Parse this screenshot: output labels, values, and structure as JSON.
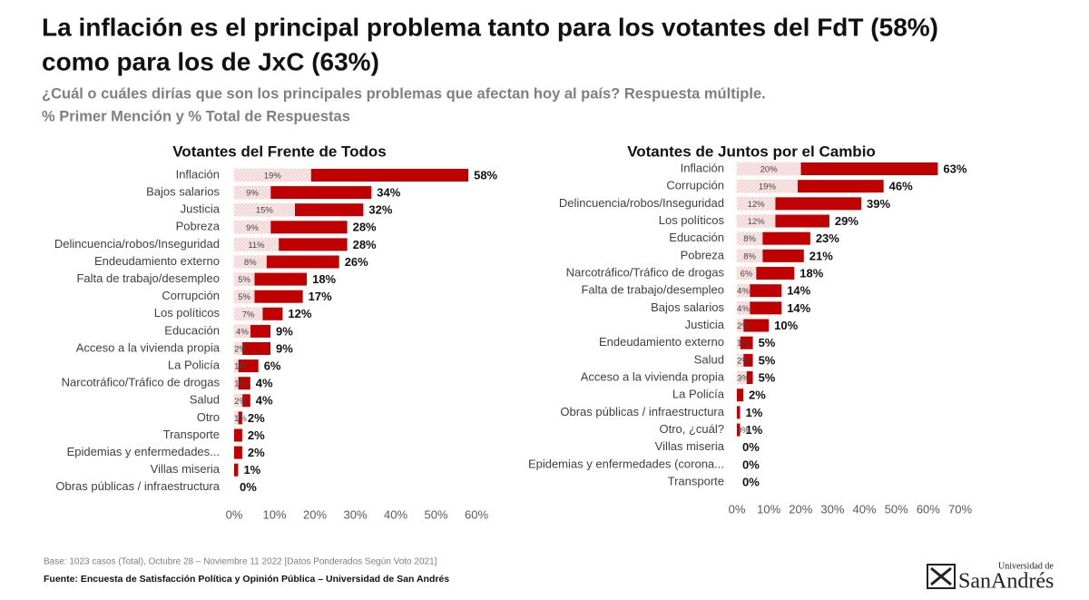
{
  "title": [
    "La inflación es el principal problema tanto para los votantes del FdT (58%)",
    "como para los de JxC (63%)"
  ],
  "subtitle": [
    "¿Cuál o cuáles dirías que son los principales problemas que afectan hoy al país? Respuesta múltiple.",
    "% Primer Mención y % Total de Respuestas"
  ],
  "note": "Base: 1023 casos (Total), Octubre 28 – Noviembre 11 2022 [Datos Ponderados Según Voto 2021]",
  "source": "Fuente: Encuesta de Satisfacción Política y Opinión Pública – Universidad de San Andrés",
  "logo": [
    "Universidad de",
    "SanAndrés"
  ],
  "chart_data": [
    {
      "type": "bar",
      "orientation": "horizontal",
      "title": "Votantes del Frente de Todos",
      "categories": [
        "Inflación",
        "Bajos salarios",
        "Justicia",
        "Pobreza",
        "Delincuencia/robos/Inseguridad",
        "Endeudamiento externo",
        "Falta de trabajo/desempleo",
        "Corrupción",
        "Los políticos",
        "Educación",
        "Acceso a la vivienda propia",
        "La Policía",
        "Narcotráfico/Tráfico de drogas",
        "Salud",
        "Otro",
        "Transporte",
        "Epidemias y enfermedades...",
        "Villas miseria",
        "Obras públicas / infraestructura"
      ],
      "series": [
        {
          "color": "#c00000",
          "values": [
            58,
            34,
            32,
            28,
            28,
            26,
            18,
            17,
            12,
            9,
            9,
            6,
            4,
            4,
            2,
            2,
            2,
            1,
            0
          ],
          "value_labels": [
            "58%",
            "34%",
            "32%",
            "28%",
            "28%",
            "26%",
            "18%",
            "17%",
            "12%",
            "9%",
            "9%",
            "6%",
            "4%",
            "4%",
            "2%",
            "2%",
            "2%",
            "1%",
            "0%"
          ]
        },
        {
          "color": "#f9dede",
          "values": [
            19,
            9,
            15,
            9,
            11,
            8,
            5,
            5,
            7,
            4,
            2,
            1,
            1,
            2,
            1,
            null,
            null,
            null,
            null
          ],
          "value_labels": [
            "19%",
            "9%",
            "15%",
            "9%",
            "11%",
            "8%",
            "5%",
            "5%",
            "7%",
            "4%",
            "2%",
            "1%",
            "1%",
            "2%",
            "1%",
            null,
            null,
            null,
            null
          ]
        }
      ],
      "xlim": [
        0,
        60
      ],
      "xticks": [
        {
          "value": 0,
          "label": "0%"
        },
        {
          "value": 10,
          "label": "10%"
        },
        {
          "value": 20,
          "label": "20%"
        },
        {
          "value": 30,
          "label": "30%"
        },
        {
          "value": 40,
          "label": "40%"
        },
        {
          "value": 50,
          "label": "50%"
        },
        {
          "value": 60,
          "label": "60%"
        }
      ]
    },
    {
      "type": "bar",
      "orientation": "horizontal",
      "title": "Votantes de Juntos por el Cambio",
      "categories": [
        "Inflación",
        "Corrupción",
        "Delincuencia/robos/Inseguridad",
        "Los políticos",
        "Educación",
        "Pobreza",
        "Narcotráfico/Tráfico de drogas",
        "Falta de trabajo/desempleo",
        "Bajos salarios",
        "Justicia",
        "Endeudamiento externo",
        "Salud",
        "Acceso a la vivienda propia",
        "La Policía",
        "Obras públicas / infraestructura",
        "Otro, ¿cuál?",
        "Villas miseria",
        "Epidemias y enfermedades (corona...",
        "Transporte"
      ],
      "series": [
        {
          "color": "#c00000",
          "values": [
            63,
            46,
            39,
            29,
            23,
            21,
            18,
            14,
            14,
            10,
            5,
            5,
            5,
            2,
            1,
            1,
            0,
            0,
            0
          ],
          "value_labels": [
            "63%",
            "46%",
            "39%",
            "29%",
            "23%",
            "21%",
            "18%",
            "14%",
            "14%",
            "10%",
            "5%",
            "5%",
            "5%",
            "2%",
            "1%",
            "1%",
            "0%",
            "0%",
            "0%"
          ]
        },
        {
          "color": "#f9dede",
          "values": [
            20,
            19,
            12,
            12,
            8,
            8,
            6,
            4,
            4,
            2,
            1,
            2,
            3,
            null,
            null,
            0,
            null,
            null,
            null
          ],
          "value_labels": [
            "20%",
            "19%",
            "12%",
            "12%",
            "8%",
            "8%",
            "6%",
            "4%",
            "4%",
            "2%",
            "1%",
            "2%",
            "3%",
            null,
            null,
            "0%",
            null,
            null,
            null
          ]
        }
      ],
      "xlim": [
        0,
        70
      ],
      "xticks": [
        {
          "value": 0,
          "label": "0%"
        },
        {
          "value": 10,
          "label": "10%"
        },
        {
          "value": 20,
          "label": "20%"
        },
        {
          "value": 30,
          "label": "30%"
        },
        {
          "value": 40,
          "label": "40%"
        },
        {
          "value": 50,
          "label": "50%"
        },
        {
          "value": 60,
          "label": "60%"
        },
        {
          "value": 70,
          "label": "70%"
        }
      ]
    }
  ]
}
